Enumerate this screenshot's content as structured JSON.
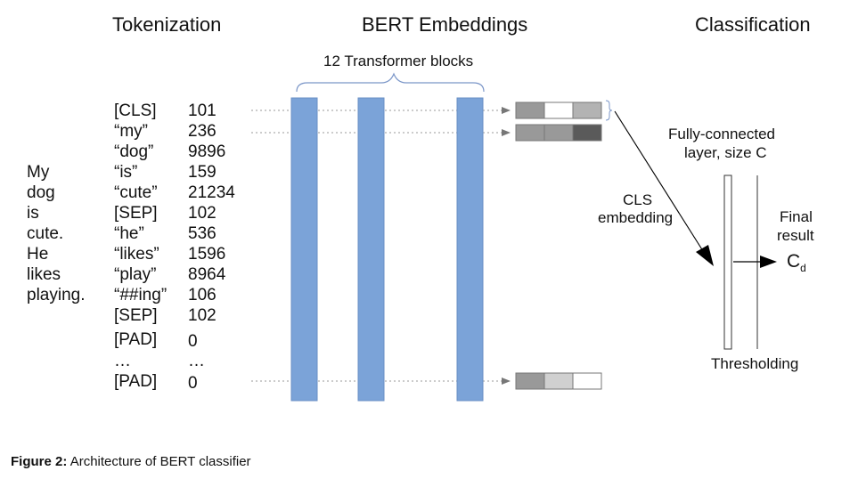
{
  "headers": {
    "tokenization": "Tokenization",
    "embeddings": "BERT Embeddings",
    "classification": "Classification"
  },
  "blocks_label": "12 Transformer blocks",
  "sentence": [
    "My",
    "dog",
    "is",
    "cute.",
    "He",
    "likes",
    "playing."
  ],
  "tokens": [
    {
      "token": "[CLS]",
      "id": "101"
    },
    {
      "token": "“my”",
      "id": "236"
    },
    {
      "token": "“dog”",
      "id": "9896"
    },
    {
      "token": "“is”",
      "id": "159"
    },
    {
      "token": "“cute”",
      "id": "21234"
    },
    {
      "token": "[SEP]",
      "id": "102"
    },
    {
      "token": "“he”",
      "id": "536"
    },
    {
      "token": "“likes”",
      "id": "1596"
    },
    {
      "token": "“play”",
      "id": "8964"
    },
    {
      "token": "“##ing”",
      "id": "106"
    },
    {
      "token": "[SEP]",
      "id": "102"
    },
    {
      "token": "[PAD]",
      "id": "0"
    },
    {
      "token": "…",
      "id": "…"
    },
    {
      "token": "[PAD]",
      "id": "0"
    }
  ],
  "labels": {
    "cls_embedding_1": "CLS",
    "cls_embedding_2": "embedding",
    "fc_1": "Fully-connected",
    "fc_2": "layer, size C",
    "final_1": "Final",
    "final_2": "result",
    "result_symbol": "C",
    "result_subscript": "d",
    "thresholding": "Thresholding"
  },
  "caption": {
    "label": "Figure 2:",
    "text": "Architecture of BERT classifier"
  },
  "colors": {
    "transformer_block": "#7ba3d8",
    "embedding_shades_row1": [
      "#999999",
      "#ffffff",
      "#b3b3b3"
    ],
    "embedding_shades_row2": [
      "#999999",
      "#999999",
      "#5a5a5a"
    ],
    "embedding_shades_row3": [
      "#999999",
      "#d0d0d0",
      "#ffffff"
    ]
  }
}
